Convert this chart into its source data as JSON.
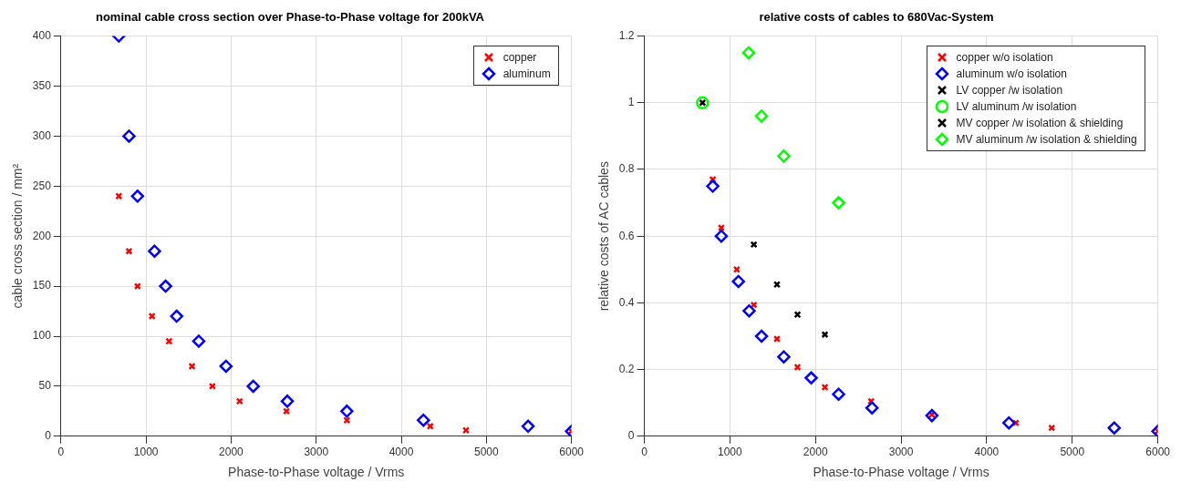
{
  "chart_data": [
    {
      "type": "scatter",
      "title": "nominal cable cross section over Phase-to-Phase voltage for 200kVA",
      "xlabel": "Phase-to-Phase voltage / Vrms",
      "ylabel": "cable cross section / mm²",
      "xlim": [
        0,
        6000
      ],
      "xticks": [
        0,
        1000,
        2000,
        3000,
        4000,
        5000,
        6000
      ],
      "ylim": [
        0,
        400
      ],
      "yticks": [
        0,
        50,
        100,
        150,
        200,
        250,
        300,
        350,
        400
      ],
      "grid": true,
      "legend": "top right",
      "series": [
        {
          "name": "copper",
          "color": "#ff0000",
          "marker": "cross",
          "x": [
            680,
            800,
            900,
            1070,
            1270,
            1540,
            1780,
            2100,
            2650,
            3360,
            4340,
            4760,
            6000
          ],
          "values": [
            240,
            185,
            150,
            120,
            95,
            70,
            50,
            35,
            25,
            16,
            10,
            6,
            5
          ]
        },
        {
          "name": "aluminum",
          "color": "#0000ff",
          "marker": "diamond",
          "x": [
            680,
            800,
            900,
            1100,
            1230,
            1360,
            1620,
            1940,
            2260,
            2660,
            3360,
            4260,
            5490,
            6000
          ],
          "values": [
            400,
            300,
            240,
            185,
            150,
            120,
            95,
            70,
            50,
            35,
            25,
            16,
            10,
            5
          ]
        }
      ]
    },
    {
      "type": "scatter",
      "title": "relative costs of cables to 680Vac-System",
      "xlabel": "Phase-to-Phase voltage / Vrms",
      "ylabel": "relative costs of AC cables",
      "xlim": [
        0,
        6000
      ],
      "xticks": [
        0,
        1000,
        2000,
        3000,
        4000,
        5000,
        6000
      ],
      "ylim": [
        0,
        1.2
      ],
      "yticks": [
        0,
        0.2,
        0.4,
        0.6,
        0.8,
        1,
        1.2
      ],
      "grid": true,
      "legend": "top right",
      "series": [
        {
          "name": "copper w/o isolation",
          "color": "#ff0000",
          "marker": "cross",
          "x": [
            800,
            900,
            1080,
            1280,
            1550,
            1790,
            2110,
            2650,
            3360,
            4340,
            4760,
            6000
          ],
          "values": [
            0.77,
            0.625,
            0.5,
            0.394,
            0.292,
            0.207,
            0.147,
            0.105,
            0.065,
            0.04,
            0.025,
            0.015
          ]
        },
        {
          "name": "aluminum w/o isolation",
          "color": "#0000ff",
          "marker": "diamond",
          "x": [
            800,
            900,
            1100,
            1225,
            1370,
            1630,
            1950,
            2270,
            2660,
            3360,
            4260,
            5490,
            6000
          ],
          "values": [
            0.75,
            0.6,
            0.464,
            0.376,
            0.3,
            0.238,
            0.175,
            0.126,
            0.085,
            0.062,
            0.04,
            0.025,
            0.015
          ]
        },
        {
          "name": "LV copper /w isolation",
          "color": "#000000",
          "marker": "cross",
          "x": [
            680
          ],
          "values": [
            1
          ]
        },
        {
          "name": "LV aluminum /w isolation",
          "color": "#00ff00",
          "marker": "circle",
          "x": [
            680
          ],
          "values": [
            1
          ]
        },
        {
          "name": "MV copper /w isolation & shielding",
          "color": "#000000",
          "marker": "cross",
          "x": [
            1280,
            1550,
            1790,
            2110
          ],
          "values": [
            0.575,
            0.455,
            0.365,
            0.305
          ]
        },
        {
          "name": "MV aluminum /w isolation & shielding",
          "color": "#00ff00",
          "marker": "diamond",
          "x": [
            1220,
            1370,
            1630,
            2270
          ],
          "values": [
            1.15,
            0.96,
            0.84,
            0.7
          ]
        }
      ]
    }
  ]
}
